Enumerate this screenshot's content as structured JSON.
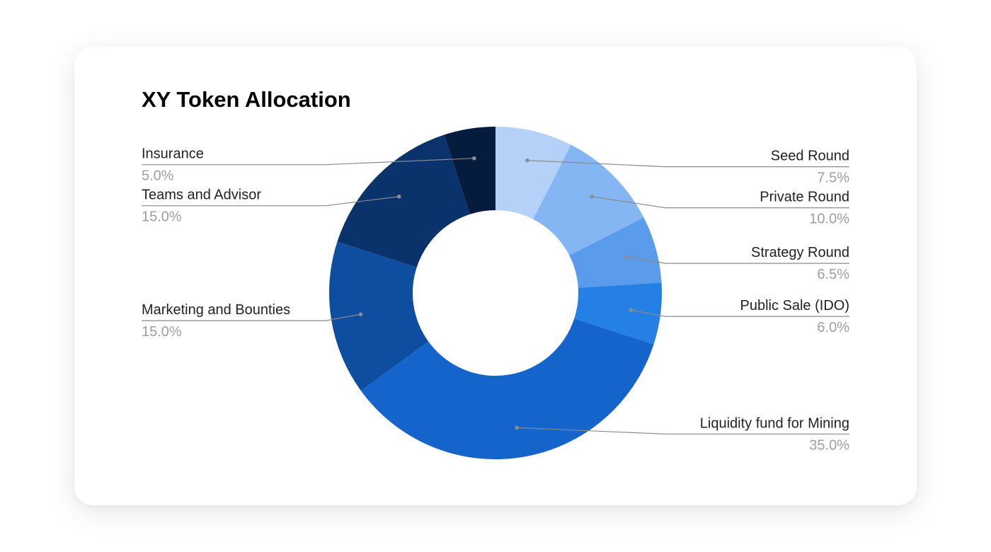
{
  "chart_data": {
    "type": "pie",
    "subtype": "donut",
    "title": "XY Token Allocation",
    "legend": "none",
    "slices": [
      {
        "label": "Seed Round",
        "value": 7.5,
        "display": "7.5%",
        "color": "#b4d2f8"
      },
      {
        "label": "Private Round",
        "value": 10.0,
        "display": "10.0%",
        "color": "#84b6f3"
      },
      {
        "label": "Strategy Round",
        "value": 6.5,
        "display": "6.5%",
        "color": "#5a9ceb"
      },
      {
        "label": "Public Sale (IDO)",
        "value": 6.0,
        "display": "6.0%",
        "color": "#2580e6"
      },
      {
        "label": "Liquidity fund for Mining",
        "value": 35.0,
        "display": "35.0%",
        "color": "#1464cc"
      },
      {
        "label": "Marketing and Bounties",
        "value": 15.0,
        "display": "15.0%",
        "color": "#0e4ea0"
      },
      {
        "label": "Teams and Advisor",
        "value": 15.0,
        "display": "15.0%",
        "color": "#0a336c"
      },
      {
        "label": "Insurance",
        "value": 5.0,
        "display": "5.0%",
        "color": "#061c3e"
      }
    ]
  }
}
